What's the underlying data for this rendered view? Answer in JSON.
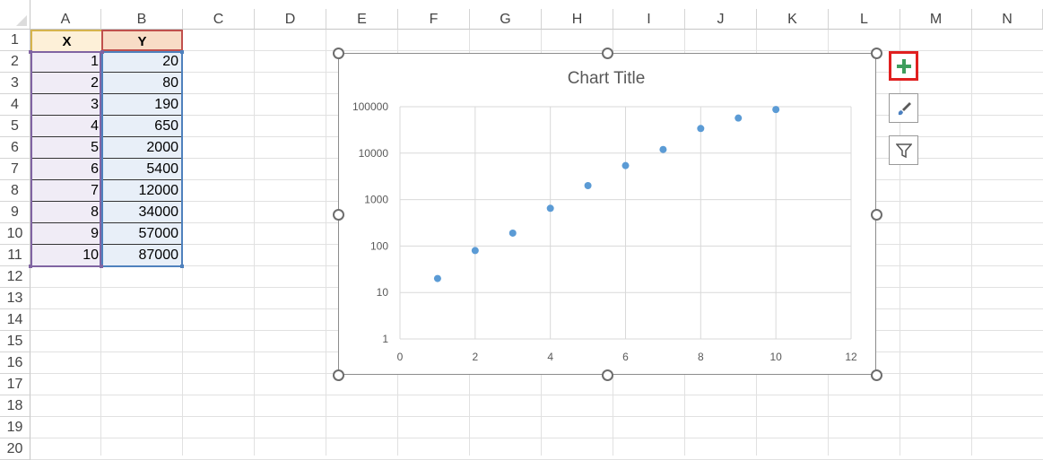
{
  "columns": [
    "A",
    "B",
    "C",
    "D",
    "E",
    "F",
    "G",
    "H",
    "I",
    "J",
    "K",
    "L",
    "M",
    "N"
  ],
  "rows": [
    "1",
    "2",
    "3",
    "4",
    "5",
    "6",
    "7",
    "8",
    "9",
    "10",
    "11",
    "12",
    "13",
    "14",
    "15",
    "16",
    "17",
    "18",
    "19",
    "20"
  ],
  "table": {
    "headers": [
      "X",
      "Y"
    ],
    "x": [
      "1",
      "2",
      "3",
      "4",
      "5",
      "6",
      "7",
      "8",
      "9",
      "10"
    ],
    "y": [
      "20",
      "80",
      "190",
      "650",
      "2000",
      "5400",
      "12000",
      "34000",
      "57000",
      "87000"
    ]
  },
  "colors": {
    "header_x_fill": "#fdf0d8",
    "header_y_fill": "#f8dcc6",
    "col_x_fill": "#f0ecf6",
    "col_y_fill": "#e8eff8",
    "marker": "#5b9bd5",
    "add_element_highlight": "#e02020",
    "plus_green": "#3e9e5d"
  },
  "side_buttons": [
    "chart-elements-plus-icon",
    "chart-styles-brush-icon",
    "chart-filters-funnel-icon"
  ],
  "chart_data": {
    "type": "scatter",
    "title": "Chart Title",
    "xlabel": "",
    "ylabel": "",
    "x": [
      1,
      2,
      3,
      4,
      5,
      6,
      7,
      8,
      9,
      10
    ],
    "y": [
      20,
      80,
      190,
      650,
      2000,
      5400,
      12000,
      34000,
      57000,
      87000
    ],
    "xlim": [
      0,
      12
    ],
    "xticks": [
      "0",
      "2",
      "4",
      "6",
      "8",
      "10",
      "12"
    ],
    "ylim": [
      1,
      100000
    ],
    "yscale": "log",
    "yticks": [
      "1",
      "10",
      "100",
      "1000",
      "10000",
      "100000"
    ],
    "grid": true,
    "legend": "none"
  }
}
